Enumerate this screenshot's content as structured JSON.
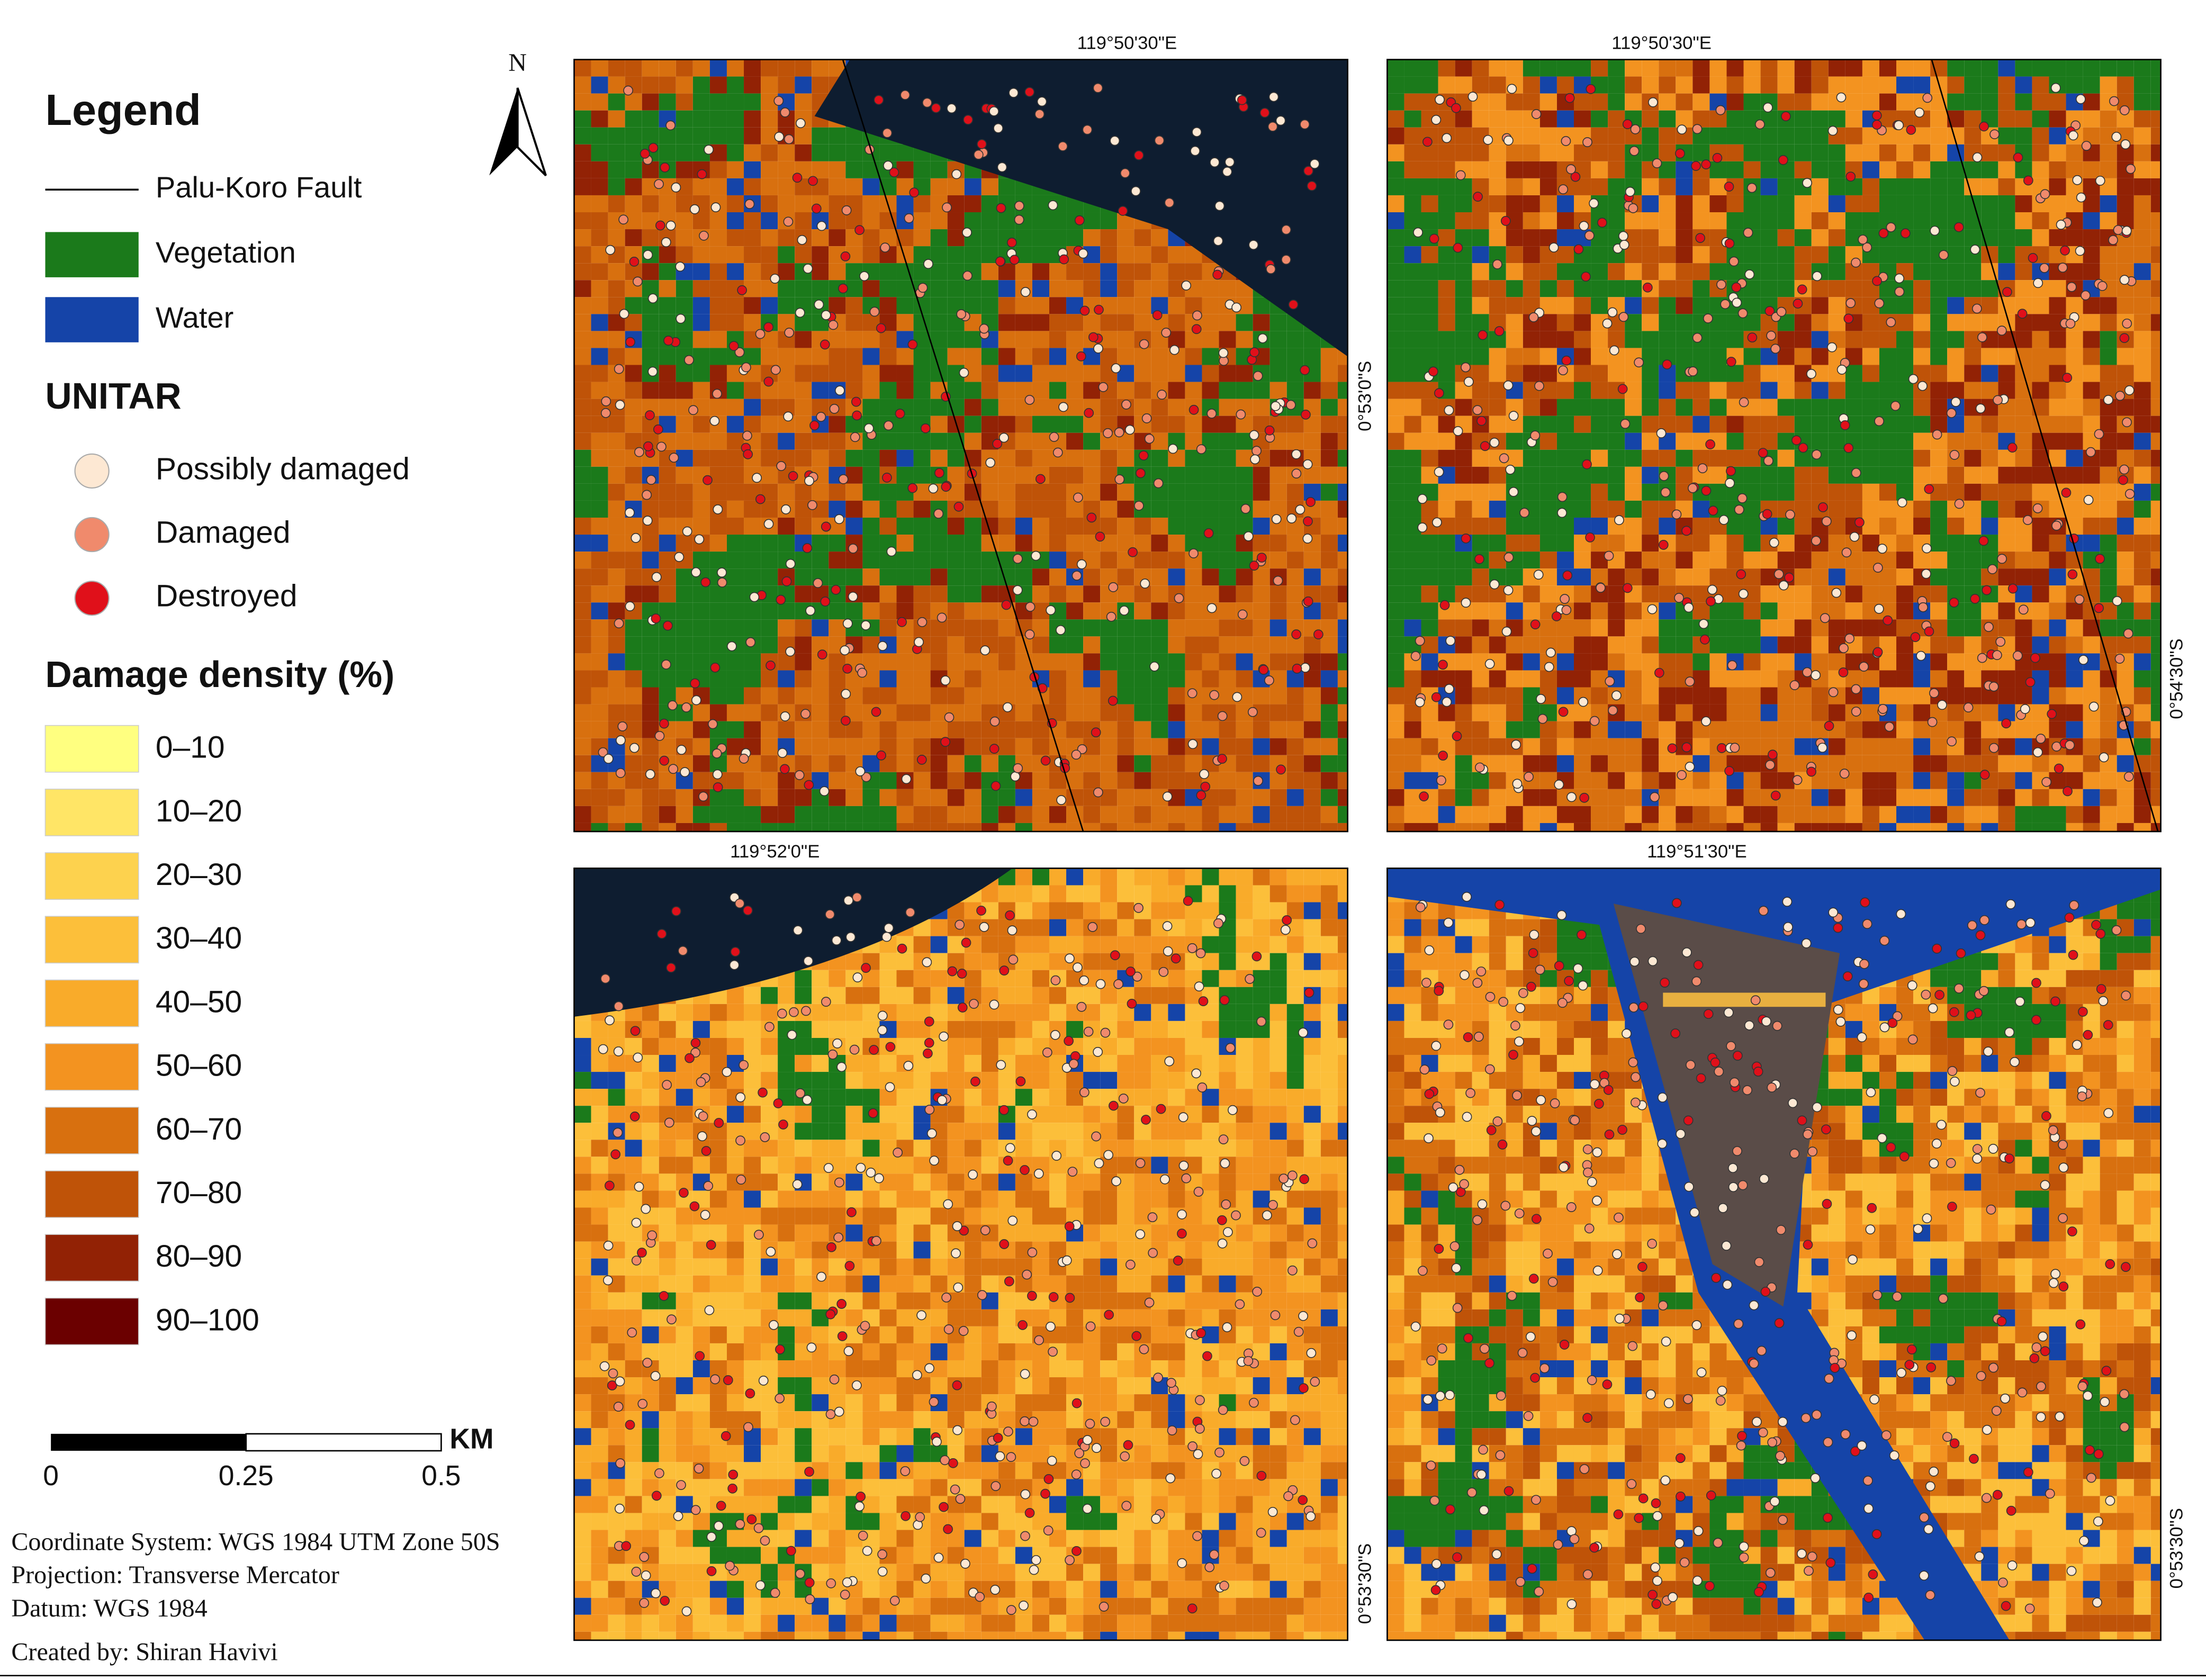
{
  "north_arrow": {
    "label": "N"
  },
  "legend": {
    "title": "Legend",
    "items": [
      {
        "label": "Palu-Koro Fault",
        "kind": "line",
        "color": "#000000"
      },
      {
        "label": "Vegetation",
        "kind": "box",
        "color": "#1b7a1b"
      },
      {
        "label": "Water",
        "kind": "box",
        "color": "#1544a8"
      }
    ]
  },
  "unitar": {
    "title": "UNITAR",
    "items": [
      {
        "label": "Possibly damaged",
        "color": "#fde8d3"
      },
      {
        "label": "Damaged",
        "color": "#f08a6c"
      },
      {
        "label": "Destroyed",
        "color": "#e0101a"
      }
    ]
  },
  "density": {
    "title": "Damage density (%)",
    "classes": [
      {
        "label": "0–10",
        "color": "#ffff80"
      },
      {
        "label": "10–20",
        "color": "#ffe566"
      },
      {
        "label": "20–30",
        "color": "#fdd24e"
      },
      {
        "label": "30–40",
        "color": "#fcbf3a"
      },
      {
        "label": "40–50",
        "color": "#f9ab2a"
      },
      {
        "label": "50–60",
        "color": "#f39320"
      },
      {
        "label": "60–70",
        "color": "#d8700f"
      },
      {
        "label": "70–80",
        "color": "#bf5308"
      },
      {
        "label": "80–90",
        "color": "#922205"
      },
      {
        "label": "90–100",
        "color": "#6b0000"
      }
    ]
  },
  "scale_bar": {
    "unit": "KM",
    "labels": [
      "0",
      "0.25",
      "0.5"
    ]
  },
  "metadata": {
    "lines": [
      "Coordinate System: WGS 1984 UTM Zone 50S",
      "Projection: Transverse Mercator",
      "Datum: WGS 1984"
    ],
    "credit": "Created by: Shiran Havivi"
  },
  "panels": [
    {
      "top_label": "119°50'30\"E",
      "side_label": "0°53'0\"S"
    },
    {
      "top_label": "119°50'30\"E",
      "side_label": "0°54'30\"S"
    },
    {
      "top_label": "119°52'0\"E",
      "side_label": "0°53'30\"S"
    },
    {
      "top_label": "119°51'30\"E",
      "side_label": "0°53'30\"S"
    }
  ]
}
